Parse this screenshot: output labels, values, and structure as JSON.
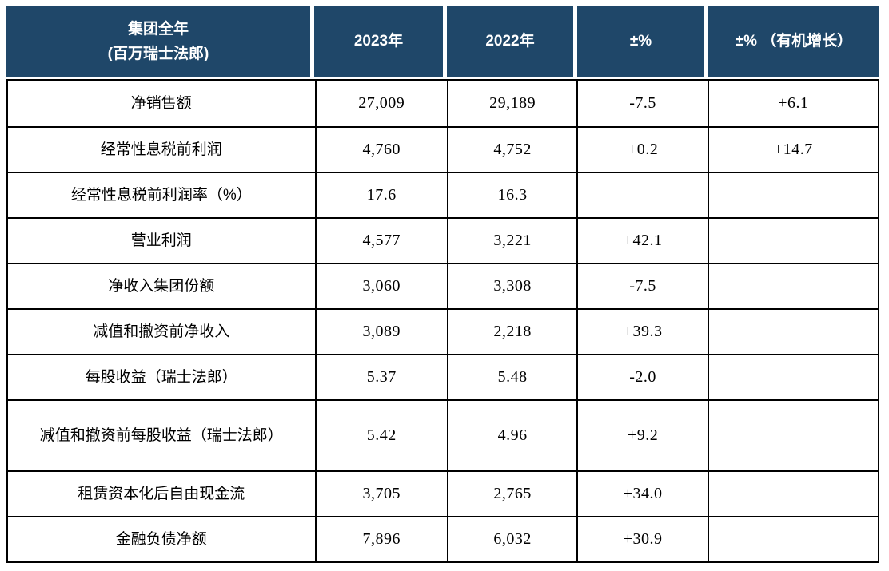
{
  "colors": {
    "header_background": "#1F4769",
    "header_text": "#FFFFFF",
    "body_border": "#000000",
    "body_text": "#000000"
  },
  "table": {
    "header": [
      "集团全年\n(百万瑞士法郎)",
      "2023年",
      "2022年",
      "±%",
      "±% （有机增长）"
    ],
    "rows": [
      {
        "cells": [
          "净销售额",
          "27,009",
          "29,189",
          "-7.5",
          "+6.1"
        ]
      },
      {
        "cells": [
          "经常性息税前利润",
          "4,760",
          "4,752",
          "+0.2",
          "+14.7"
        ]
      },
      {
        "cells": [
          "经常性息税前利润率（%）",
          "17.6",
          "16.3",
          "",
          ""
        ]
      },
      {
        "cells": [
          "营业利润",
          "4,577",
          "3,221",
          "+42.1",
          ""
        ]
      },
      {
        "cells": [
          "净收入集团份额",
          "3,060",
          "3,308",
          "-7.5",
          ""
        ]
      },
      {
        "cells": [
          "减值和撤资前净收入",
          "3,089",
          "2,218",
          "+39.3",
          ""
        ]
      },
      {
        "cells": [
          "每股收益（瑞士法郎）",
          "5.37",
          "5.48",
          "-2.0",
          ""
        ]
      },
      {
        "cells": [
          "减值和撤资前每股收益（瑞士法郎）",
          "5.42",
          "4.96",
          "+9.2",
          ""
        ]
      },
      {
        "cells": [
          "租赁资本化后自由现金流",
          "3,705",
          "2,765",
          "+34.0",
          ""
        ]
      },
      {
        "cells": [
          "金融负债净额",
          "7,896",
          "6,032",
          "+30.9",
          ""
        ]
      }
    ]
  },
  "chart_data": {
    "type": "table",
    "title": "集团全年 (百万瑞士法郎)",
    "columns": [
      "集团全年 (百万瑞士法郎)",
      "2023年",
      "2022年",
      "±%",
      "±% （有机增长）"
    ],
    "rows": [
      [
        "净销售额",
        "27,009",
        "29,189",
        "-7.5",
        "+6.1"
      ],
      [
        "经常性息税前利润",
        "4,760",
        "4,752",
        "+0.2",
        "+14.7"
      ],
      [
        "经常性息税前利润率（%）",
        "17.6",
        "16.3",
        "",
        ""
      ],
      [
        "营业利润",
        "4,577",
        "3,221",
        "+42.1",
        ""
      ],
      [
        "净收入集团份额",
        "3,060",
        "3,308",
        "-7.5",
        ""
      ],
      [
        "减值和撤资前净收入",
        "3,089",
        "2,218",
        "+39.3",
        ""
      ],
      [
        "每股收益（瑞士法郎）",
        "5.37",
        "5.48",
        "-2.0",
        ""
      ],
      [
        "减值和撤资前每股收益（瑞士法郎）",
        "5.42",
        "4.96",
        "+9.2",
        ""
      ],
      [
        "租赁资本化后自由现金流",
        "3,705",
        "2,765",
        "+34.0",
        ""
      ],
      [
        "金融负债净额",
        "7,896",
        "6,032",
        "+30.9",
        ""
      ]
    ]
  }
}
